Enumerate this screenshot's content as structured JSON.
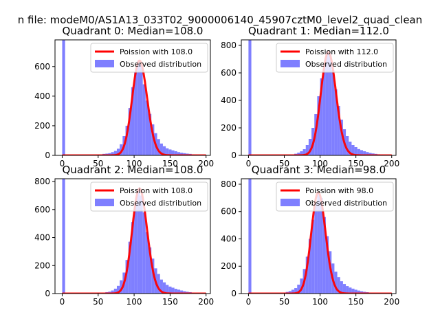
{
  "suptitle": "n file: modeM0/AS1A13_033T02_9000006140_45907cztM0_level2_quad_clean",
  "colors": {
    "hist": "#7f7fff",
    "poisson": "#ff0000",
    "axes": "#000000",
    "legend_border": "#cccccc"
  },
  "chart_data": [
    {
      "type": "bar",
      "title": "Quadrant 0: Median=108.0",
      "xlabel": "",
      "ylabel": "",
      "xlim": [
        -10,
        206
      ],
      "ylim": [
        0,
        780
      ],
      "xticks": [
        0,
        50,
        100,
        150,
        200
      ],
      "yticks": [
        0,
        200,
        400,
        600
      ],
      "grid": false,
      "legend_position": "top-right",
      "hist_bin_width": 4,
      "hist_bin_starts": [
        0,
        56,
        60,
        64,
        68,
        72,
        76,
        80,
        84,
        88,
        92,
        96,
        100,
        104,
        108,
        112,
        116,
        120,
        124,
        128,
        132,
        136,
        140,
        144,
        148,
        152,
        156,
        160,
        164,
        168,
        172,
        176,
        180,
        184
      ],
      "hist_values": [
        780,
        10,
        12,
        15,
        22,
        30,
        45,
        75,
        130,
        200,
        320,
        460,
        560,
        640,
        610,
        480,
        370,
        280,
        210,
        150,
        110,
        80,
        62,
        48,
        40,
        34,
        28,
        22,
        18,
        15,
        12,
        10,
        7,
        5
      ],
      "poisson": {
        "mean": 108.0,
        "scale": 1.0,
        "label": "Poission with 108.0",
        "x_range": [
          0,
          200
        ]
      },
      "legend": [
        "Poission with 108.0",
        "Observed distribution"
      ]
    },
    {
      "type": "bar",
      "title": "Quadrant 1: Median=112.0",
      "xlabel": "",
      "ylabel": "",
      "xlim": [
        -10,
        206
      ],
      "ylim": [
        0,
        840
      ],
      "xticks": [
        0,
        50,
        100,
        150,
        200
      ],
      "yticks": [
        0,
        200,
        400,
        600,
        800
      ],
      "grid": false,
      "legend_position": "top-right",
      "hist_bin_width": 4,
      "hist_bin_starts": [
        0,
        64,
        68,
        72,
        76,
        80,
        84,
        88,
        92,
        96,
        100,
        104,
        108,
        112,
        116,
        120,
        124,
        128,
        132,
        136,
        140,
        144,
        148,
        152,
        156,
        160,
        164,
        168,
        172,
        176,
        180,
        184,
        188
      ],
      "hist_values": [
        840,
        12,
        20,
        30,
        45,
        75,
        120,
        200,
        300,
        430,
        560,
        660,
        750,
        740,
        620,
        480,
        360,
        260,
        190,
        140,
        100,
        75,
        60,
        46,
        38,
        30,
        24,
        18,
        14,
        11,
        8,
        6,
        4
      ],
      "poisson": {
        "mean": 112.0,
        "scale": 1.0,
        "label": "Poission with 112.0",
        "x_range": [
          0,
          200
        ]
      },
      "legend": [
        "Poission with 112.0",
        "Observed distribution"
      ]
    },
    {
      "type": "bar",
      "title": "Quadrant 2: Median=108.0",
      "xlabel": "",
      "ylabel": "",
      "xlim": [
        -10,
        206
      ],
      "ylim": [
        0,
        820
      ],
      "xticks": [
        0,
        50,
        100,
        150,
        200
      ],
      "yticks": [
        0,
        200,
        400,
        600,
        800
      ],
      "grid": false,
      "legend_position": "top-right",
      "hist_bin_width": 4,
      "hist_bin_starts": [
        0,
        60,
        64,
        68,
        72,
        76,
        80,
        84,
        88,
        92,
        96,
        100,
        104,
        108,
        112,
        116,
        120,
        124,
        128,
        132,
        136,
        140,
        144,
        148,
        152,
        156,
        160,
        164,
        168,
        172,
        176,
        180
      ],
      "hist_values": [
        820,
        10,
        14,
        22,
        35,
        55,
        95,
        150,
        240,
        370,
        510,
        640,
        750,
        700,
        580,
        440,
        330,
        250,
        180,
        140,
        100,
        80,
        62,
        50,
        42,
        34,
        28,
        22,
        17,
        13,
        10,
        7
      ],
      "poisson": {
        "mean": 108.0,
        "scale": 1.0,
        "label": "Poission with 108.0",
        "x_range": [
          0,
          200
        ]
      },
      "legend": [
        "Poission with 108.0",
        "Observed distribution"
      ]
    },
    {
      "type": "bar",
      "title": "Quadrant 3: Median=98.0",
      "xlabel": "",
      "ylabel": "",
      "xlim": [
        -10,
        206
      ],
      "ylim": [
        0,
        840
      ],
      "xticks": [
        0,
        50,
        100,
        150,
        200
      ],
      "yticks": [
        0,
        200,
        400,
        600,
        800
      ],
      "grid": false,
      "legend_position": "top-right",
      "hist_bin_width": 4,
      "hist_bin_starts": [
        0,
        52,
        56,
        60,
        64,
        68,
        72,
        76,
        80,
        84,
        88,
        92,
        96,
        100,
        104,
        108,
        112,
        116,
        120,
        124,
        128,
        132,
        136,
        140,
        144,
        148,
        152,
        156,
        160,
        164,
        168,
        172
      ],
      "hist_values": [
        840,
        12,
        18,
        28,
        40,
        65,
        110,
        180,
        270,
        400,
        540,
        660,
        740,
        700,
        560,
        420,
        310,
        220,
        160,
        120,
        90,
        70,
        55,
        44,
        36,
        28,
        22,
        17,
        13,
        10,
        7,
        5
      ],
      "poisson": {
        "mean": 98.0,
        "scale": 1.0,
        "label": "Poission with 98.0",
        "x_range": [
          0,
          200
        ]
      },
      "legend": [
        "Poission with 98.0",
        "Observed distribution"
      ]
    }
  ]
}
